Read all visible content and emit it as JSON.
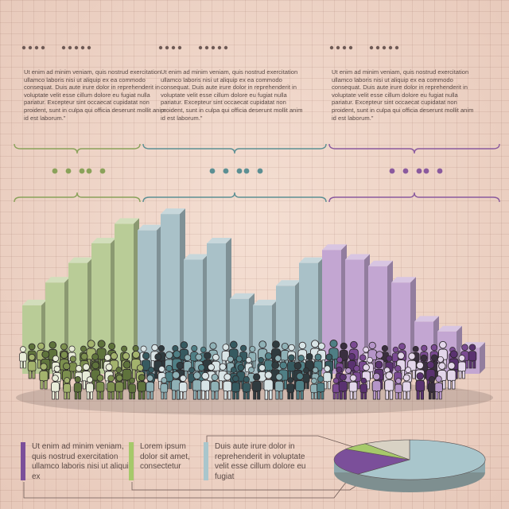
{
  "columns": [
    {
      "paragraph": "Ut enim ad minim veniam, quis nostrud exercitation ullamco laboris nisi ut aliquip ex ea commodo consequat. Duis aute irure dolor in reprehenderit in voluptate velit esse cillum dolore eu fugiat nulla pariatur. Excepteur sint occaecat cupidatat non proident, sunt in culpa qui officia deserunt mollit anim id est laborum.\"",
      "accent": "#8aa25a"
    },
    {
      "paragraph": "Ut enim ad minim veniam, quis nostrud exercitation ullamco laboris nisi ut aliquip ex ea commodo consequat. Duis aute irure dolor in reprehenderit in voluptate velit esse cillum dolore eu fugiat nulla pariatur. Excepteur sint occaecat cupidatat non proident, sunt in culpa qui officia deserunt mollit anim id est laborum.\"",
      "accent": "#5c8f93"
    },
    {
      "paragraph": "Ut enim ad minim veniam, quis nostrud exercitation ullamco laboris nisi ut aliquip ex ea commodo consequat. Duis aute irure dolor in reprehenderit in voluptate velit esse cillum dolore eu fugiat nulla pariatur. Excepteur sint occaecat cupidatat non proident, sunt in culpa qui officia deserunt mollit anim id est laborum.\"",
      "accent": "#8a5a9e"
    }
  ],
  "legend": [
    {
      "text": "Ut enim ad minim veniam, quis nostrud exercitation ullamco laboris nisi ut aliquip ex",
      "color": "#7b4f9a"
    },
    {
      "text": "Lorem ipsum dolor sit amet, consectetur",
      "color": "#a6c96a"
    },
    {
      "text": "Duis aute irure dolor in reprehenderit in voluptate velit esse cillum dolore eu fugiat",
      "color": "#a9c6cc"
    }
  ],
  "chart_data": {
    "type": "bar",
    "series": [
      {
        "color": "#b9cc97",
        "values": [
          21,
          28,
          34,
          40,
          46
        ]
      },
      {
        "color": "#a9c1c8",
        "values": [
          44,
          49,
          35,
          40,
          23,
          21,
          27,
          34
        ]
      },
      {
        "color": "#c3a6d2",
        "values": [
          38,
          35,
          33,
          28,
          16,
          13,
          8
        ]
      }
    ],
    "ylim": [
      0,
      50
    ],
    "pie": [
      {
        "color": "#a9c6cc",
        "value": 62
      },
      {
        "color": "#7b4f9a",
        "value": 22
      },
      {
        "color": "#a6c96a",
        "value": 6
      },
      {
        "color": "#d8d2c4",
        "value": 10
      }
    ]
  }
}
